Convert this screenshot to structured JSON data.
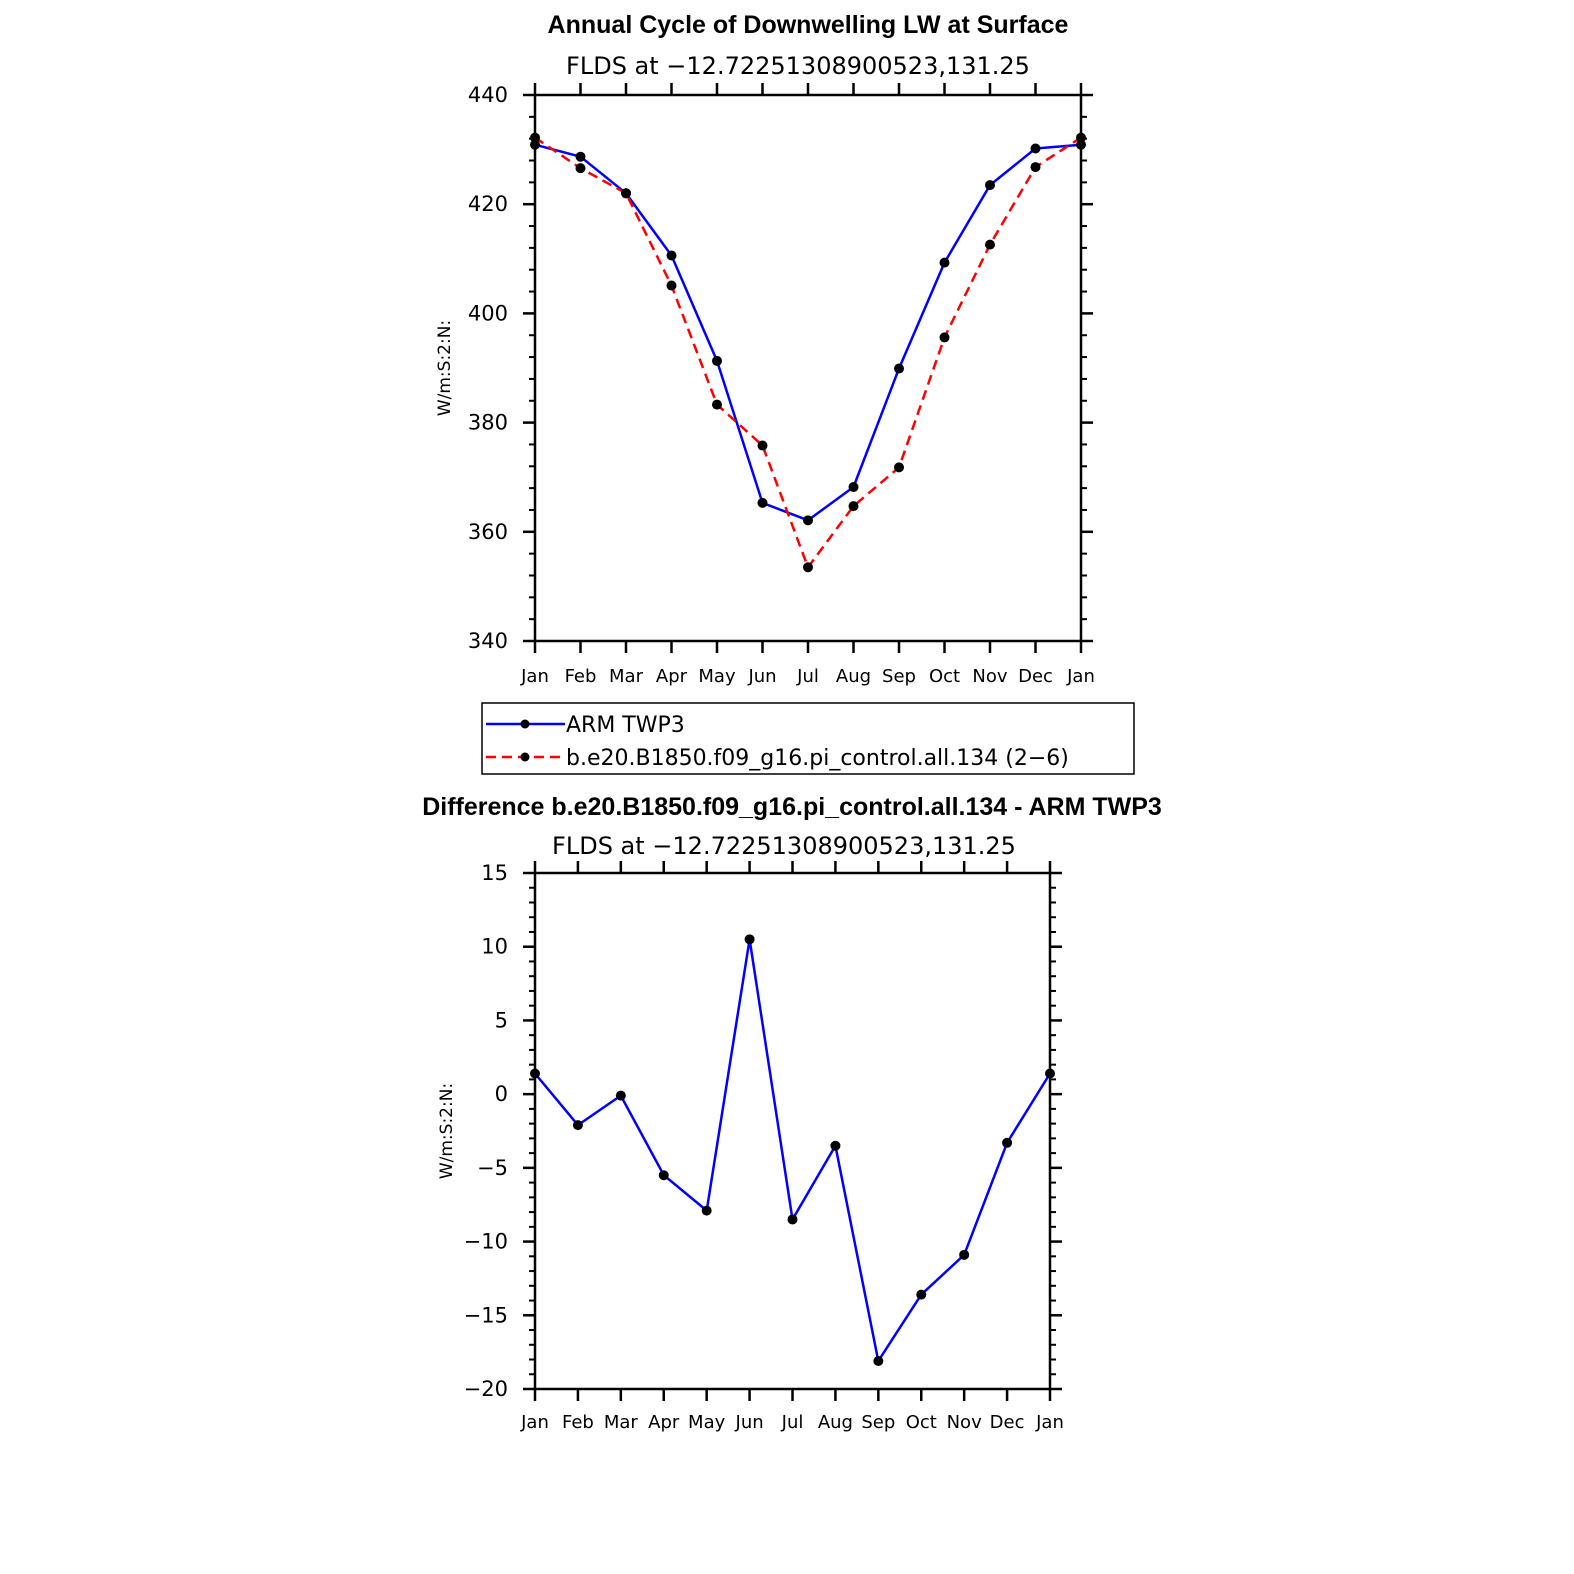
{
  "colors": {
    "arm": "#0000ff",
    "model": "#ff0000",
    "marker": "#000000",
    "axis": "#000000"
  },
  "chart_data": [
    {
      "type": "line",
      "title": "Annual Cycle of Downwelling LW at Surface",
      "subtitle": "FLDS at −12.72251308900523,131.25",
      "xlabel": "",
      "ylabel": "W/m:S:2:N:",
      "categories": [
        "Jan",
        "Feb",
        "Mar",
        "Apr",
        "May",
        "Jun",
        "Jul",
        "Aug",
        "Sep",
        "Oct",
        "Nov",
        "Dec",
        "Jan"
      ],
      "ylim": [
        340,
        440
      ],
      "yticks": [
        340,
        360,
        380,
        400,
        420,
        440
      ],
      "ytick_labels": [
        "340",
        "360",
        "380",
        "400",
        "420",
        "440"
      ],
      "series": [
        {
          "name": "ARM TWP3",
          "style": "solid",
          "color": "#0000ff",
          "values": [
            430.9,
            428.7,
            422.0,
            410.6,
            391.3,
            365.3,
            362.1,
            368.2,
            389.9,
            409.3,
            423.5,
            430.2,
            430.9
          ]
        },
        {
          "name": "b.e20.B1850.f09_g16.pi_control.all.134 (2−6)",
          "style": "dashed",
          "color": "#ff0000",
          "values": [
            432.2,
            426.6,
            422.0,
            405.1,
            383.3,
            375.8,
            353.5,
            364.7,
            371.8,
            395.6,
            412.6,
            426.8,
            432.2
          ]
        }
      ],
      "legend": "below"
    },
    {
      "type": "line",
      "title": "Difference b.e20.B1850.f09_g16.pi_control.all.134 - ARM TWP3",
      "subtitle": "FLDS at −12.72251308900523,131.25",
      "xlabel": "",
      "ylabel": "W/m:S:2:N:",
      "categories": [
        "Jan",
        "Feb",
        "Mar",
        "Apr",
        "May",
        "Jun",
        "Jul",
        "Aug",
        "Sep",
        "Oct",
        "Nov",
        "Dec",
        "Jan"
      ],
      "ylim": [
        -20,
        15
      ],
      "yticks": [
        -20,
        -15,
        -10,
        -5,
        0,
        5,
        10,
        15
      ],
      "ytick_labels": [
        "−20",
        "−15",
        "−10",
        "−5",
        "0",
        "5",
        "10",
        "15"
      ],
      "series": [
        {
          "name": "Difference",
          "style": "solid",
          "color": "#0000ff",
          "values": [
            1.4,
            -2.1,
            -0.1,
            -5.5,
            -7.9,
            10.5,
            -8.5,
            -3.5,
            -18.1,
            -13.6,
            -10.9,
            -3.3,
            1.4
          ]
        }
      ]
    }
  ]
}
